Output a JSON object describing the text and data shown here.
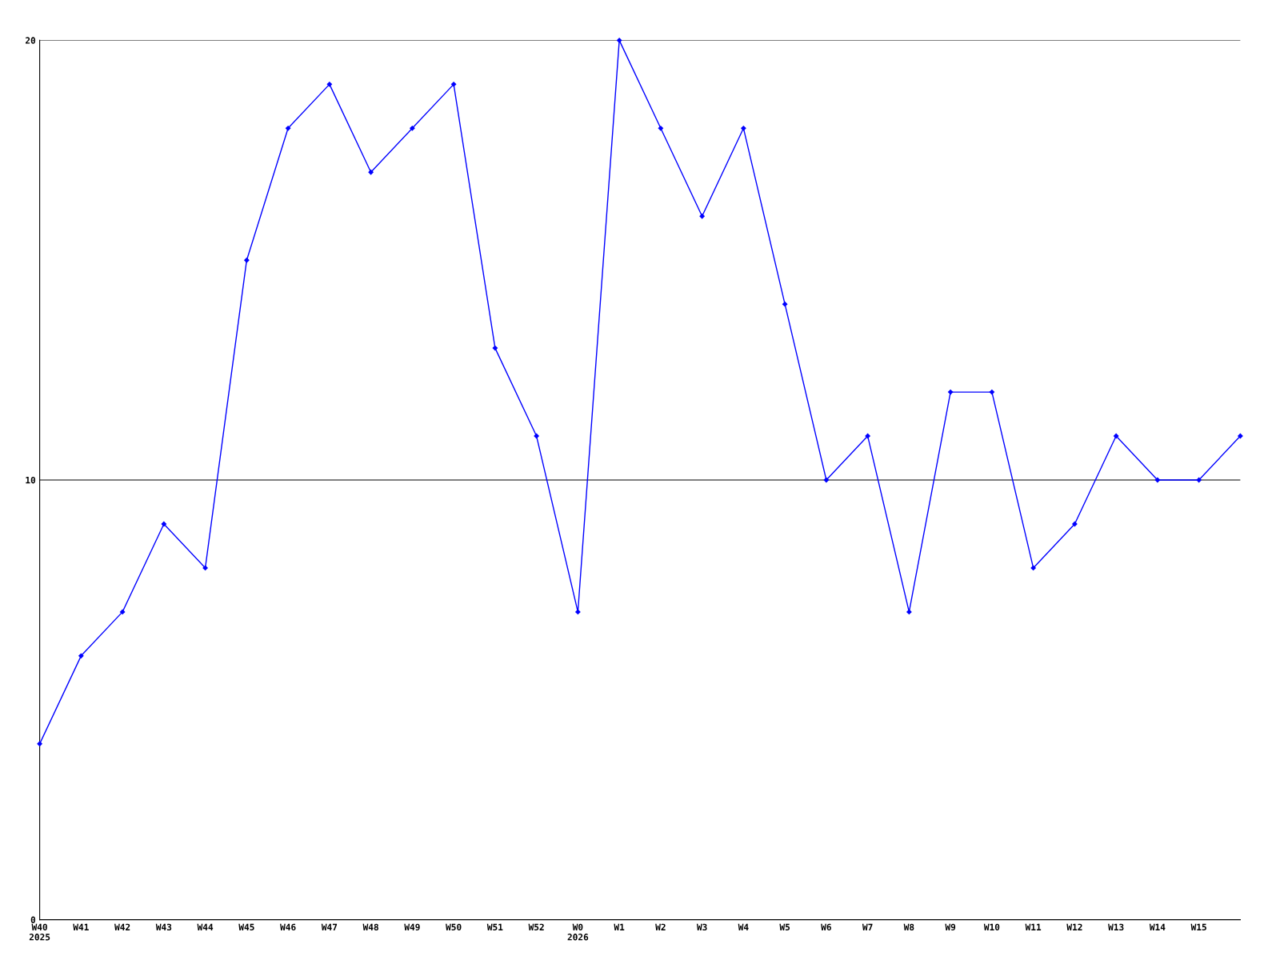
{
  "chart_data": {
    "type": "line",
    "categories": [
      "W40\n2025",
      "W41",
      "W42",
      "W43",
      "W44",
      "W45",
      "W46",
      "W47",
      "W48",
      "W49",
      "W50",
      "W51",
      "W52",
      "W0\n2026",
      "W1",
      "W2",
      "W3",
      "W4",
      "W5",
      "W6",
      "W7",
      "W8",
      "W9",
      "W10",
      "W11",
      "W12",
      "W13",
      "W14",
      "W15",
      null
    ],
    "series": [
      {
        "color": "#0000ff",
        "values": [
          4,
          6,
          7,
          9,
          8,
          15,
          18,
          19,
          17,
          18,
          19,
          13,
          11,
          7,
          20,
          18,
          16,
          18,
          14,
          10,
          11,
          7,
          12,
          12,
          8,
          9,
          11,
          10,
          10,
          11
        ]
      }
    ],
    "ylim": [
      0,
      20
    ],
    "yticks": [
      0,
      10,
      20
    ],
    "grid": "y",
    "marker": "diamond",
    "line_style": "solid"
  }
}
